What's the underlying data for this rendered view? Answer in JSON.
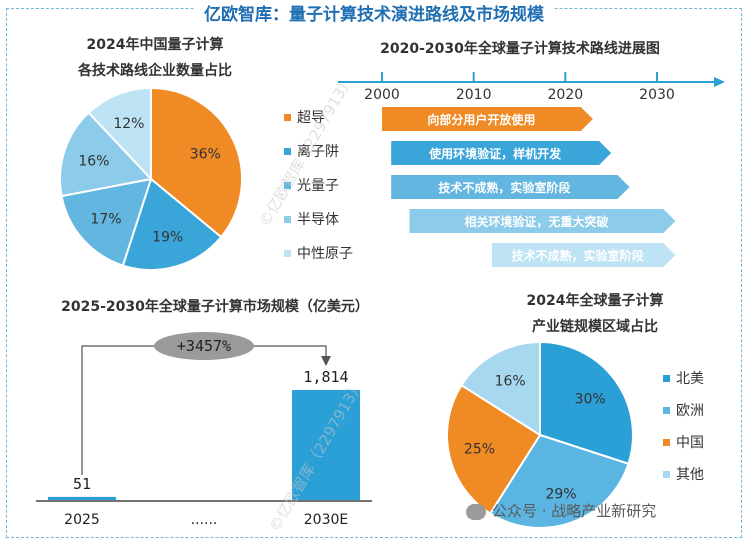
{
  "title": "亿欧智库：量子计算技术演进路线及市场规模",
  "colors": {
    "superconducting": "#f08a24",
    "ion_trap": "#3aa5d9",
    "photonic": "#62b6e0",
    "semiconductor": "#8ccbe9",
    "neutral_atom": "#bde3f4",
    "north_america": "#2aa0d6",
    "europe": "#5bb5e2",
    "china": "#f08a24",
    "other": "#a7d8f0",
    "bar": "#2aa0d6",
    "arrow_timeline": "#2aa0d6"
  },
  "chart_data": [
    {
      "id": "pie_tech",
      "type": "pie",
      "title_line1": "2024年中国量子计算",
      "title_line2": "各技术路线企业数量占比",
      "slices": [
        {
          "name": "超导",
          "value": 36,
          "label": "36%",
          "color_key": "superconducting"
        },
        {
          "name": "离子阱",
          "value": 19,
          "label": "19%",
          "color_key": "ion_trap"
        },
        {
          "name": "光量子",
          "value": 17,
          "label": "17%",
          "color_key": "photonic"
        },
        {
          "name": "半导体",
          "value": 16,
          "label": "16%",
          "color_key": "semiconductor"
        },
        {
          "name": "中性原子",
          "value": 12,
          "label": "12%",
          "color_key": "neutral_atom"
        }
      ]
    },
    {
      "id": "timeline",
      "type": "bar",
      "title": "2020-2030年全球量子计算技术路线进展图",
      "axis": {
        "ticks": [
          2000,
          2010,
          2020,
          2030
        ],
        "labels": [
          "2000",
          "2010",
          "2020",
          "2030"
        ]
      },
      "rows": [
        {
          "route": "超导",
          "start": 2000,
          "end": 2023,
          "text": "向部分用户开放使用",
          "color_key": "superconducting"
        },
        {
          "route": "离子阱",
          "start": 2001,
          "end": 2025,
          "text": "使用环境验证，样机开发",
          "color_key": "ion_trap"
        },
        {
          "route": "光量子",
          "start": 2001,
          "end": 2027,
          "text": "技术不成熟，实验室阶段",
          "color_key": "photonic"
        },
        {
          "route": "半导体",
          "start": 2003,
          "end": 2032,
          "text": "相关环境验证，无重大突破",
          "color_key": "semiconductor"
        },
        {
          "route": "中性原子",
          "start": 2012,
          "end": 2032,
          "text": "技术不成熟，实验室阶段",
          "color_key": "neutral_atom"
        }
      ]
    },
    {
      "id": "market_bar",
      "type": "bar",
      "title": "2025-2030年全球量子计算市场规模（亿美元）",
      "categories": [
        "2025",
        "2030E"
      ],
      "values": [
        51,
        1814
      ],
      "value_labels": [
        "51",
        "1,814"
      ],
      "gap_label": "......",
      "growth_label": "+3457%",
      "ylim": [
        0,
        2000
      ]
    },
    {
      "id": "pie_region",
      "type": "pie",
      "title_line1": "2024年全球量子计算",
      "title_line2": "产业链规模区域占比",
      "slices": [
        {
          "name": "北美",
          "value": 30,
          "label": "30%",
          "color_key": "north_america"
        },
        {
          "name": "欧洲",
          "value": 29,
          "label": "29%",
          "color_key": "europe"
        },
        {
          "name": "中国",
          "value": 25,
          "label": "25%",
          "color_key": "china"
        },
        {
          "name": "其他",
          "value": 16,
          "label": "16%",
          "color_key": "other"
        }
      ]
    }
  ],
  "watermarks": [
    "©亿欧智库（2297913）",
    "©亿欧智库（2297913）"
  ],
  "footer": {
    "text": "公众号 · 战略产业新研究"
  }
}
